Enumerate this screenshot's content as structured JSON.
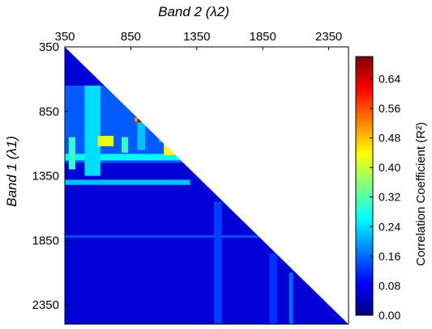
{
  "chart_data": {
    "type": "heatmap",
    "subtype": "lower-triangle correlation matrix",
    "x_axis": {
      "title": "Band 2 (λ2)",
      "position": "top",
      "range": [
        350,
        2500
      ],
      "ticks": [
        350,
        850,
        1350,
        1850,
        2350
      ]
    },
    "y_axis": {
      "title": "Band 1 (λ1)",
      "position": "left",
      "range": [
        350,
        2500
      ],
      "inverted": true,
      "ticks": [
        350,
        850,
        1350,
        1850,
        2350
      ]
    },
    "colorbar": {
      "label": "Correlation Coefficient (R²)",
      "range": [
        0,
        0.7
      ],
      "ticks": [
        "0.00",
        "0.08",
        "0.16",
        "0.24",
        "0.32",
        "0.40",
        "0.48",
        "0.56",
        "0.64"
      ],
      "colormap": "jet",
      "colors": [
        "#00007f",
        "#0000ff",
        "#007fff",
        "#00ffff",
        "#7fff7f",
        "#ffff00",
        "#ff7f00",
        "#ff0000",
        "#7f0000"
      ]
    },
    "background_value": 0.06,
    "regions": [
      {
        "x": [
          350,
          2500
        ],
        "y": [
          350,
          2500
        ],
        "value": 0.06
      },
      {
        "x": [
          350,
          1250
        ],
        "y": [
          650,
          1250
        ],
        "value": 0.15
      },
      {
        "x": [
          350,
          1300
        ],
        "y": [
          1180,
          1230
        ],
        "value": 0.26
      },
      {
        "x": [
          350,
          1300
        ],
        "y": [
          1380,
          1420
        ],
        "value": 0.22
      },
      {
        "x": [
          350,
          2500
        ],
        "y": [
          1810,
          1830
        ],
        "value": 0.14
      },
      {
        "x": [
          500,
          620
        ],
        "y": [
          650,
          1350
        ],
        "value": 0.24
      },
      {
        "x": [
          380,
          430
        ],
        "y": [
          1050,
          1300
        ],
        "value": 0.3
      },
      {
        "x": [
          600,
          720
        ],
        "y": [
          1040,
          1120
        ],
        "value": 0.42
      },
      {
        "x": [
          780,
          830
        ],
        "y": [
          1050,
          1170
        ],
        "value": 0.3
      },
      {
        "x": [
          1100,
          1180
        ],
        "y": [
          1100,
          1190
        ],
        "value": 0.44
      },
      {
        "x": [
          1060,
          1120
        ],
        "y": [
          1040,
          1090
        ],
        "value": 0.2
      },
      {
        "x": [
          900,
          960
        ],
        "y": [
          920,
          1150
        ],
        "value": 0.22
      },
      {
        "x": [
          1480,
          1540
        ],
        "y": [
          1550,
          2500
        ],
        "value": 0.13
      },
      {
        "x": [
          1900,
          1960
        ],
        "y": [
          1950,
          2500
        ],
        "value": 0.12
      },
      {
        "x": [
          2050,
          2080
        ],
        "y": [
          2100,
          2500
        ],
        "value": 0.16
      },
      {
        "x": [
          880,
          900
        ],
        "y": [
          900,
          930
        ],
        "value": 0.5
      },
      {
        "x": [
          900,
          940
        ],
        "y": [
          905,
          935
        ],
        "value": 0.7
      },
      {
        "x": [
          940,
          960
        ],
        "y": [
          905,
          930
        ],
        "value": 0.58
      }
    ]
  }
}
